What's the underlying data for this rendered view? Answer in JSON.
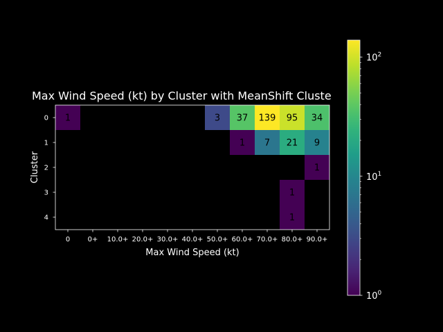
{
  "chart_data": {
    "type": "heatmap",
    "title": "Max Wind Speed (kt) by Cluster with MeanShift Clustering",
    "xlabel": "Max Wind Speed (kt)",
    "ylabel": "Cluster",
    "x_categories": [
      "0",
      "0+",
      "10.0+",
      "20.0+",
      "30.0+",
      "40.0+",
      "50.0+",
      "60.0+",
      "70.0+",
      "80.0+",
      "90.0+"
    ],
    "y_categories": [
      "0",
      "1",
      "2",
      "3",
      "4"
    ],
    "values": [
      [
        1,
        null,
        null,
        null,
        null,
        null,
        3,
        37,
        139,
        95,
        34
      ],
      [
        null,
        null,
        null,
        null,
        null,
        null,
        null,
        1,
        7,
        21,
        9
      ],
      [
        null,
        null,
        null,
        null,
        null,
        null,
        null,
        null,
        null,
        null,
        1
      ],
      [
        null,
        null,
        null,
        null,
        null,
        null,
        null,
        null,
        null,
        1,
        null
      ],
      [
        null,
        null,
        null,
        null,
        null,
        null,
        null,
        null,
        null,
        1,
        null
      ]
    ],
    "colorbar": {
      "scale": "log",
      "colormap": "viridis",
      "range": [
        1,
        139
      ],
      "tick_values": [
        1,
        10,
        100
      ],
      "tick_labels": [
        "10^0",
        "10^1",
        "10^2"
      ]
    },
    "background": "#000000",
    "text_color": "#ffffff",
    "cell_text_color": "#000000"
  }
}
